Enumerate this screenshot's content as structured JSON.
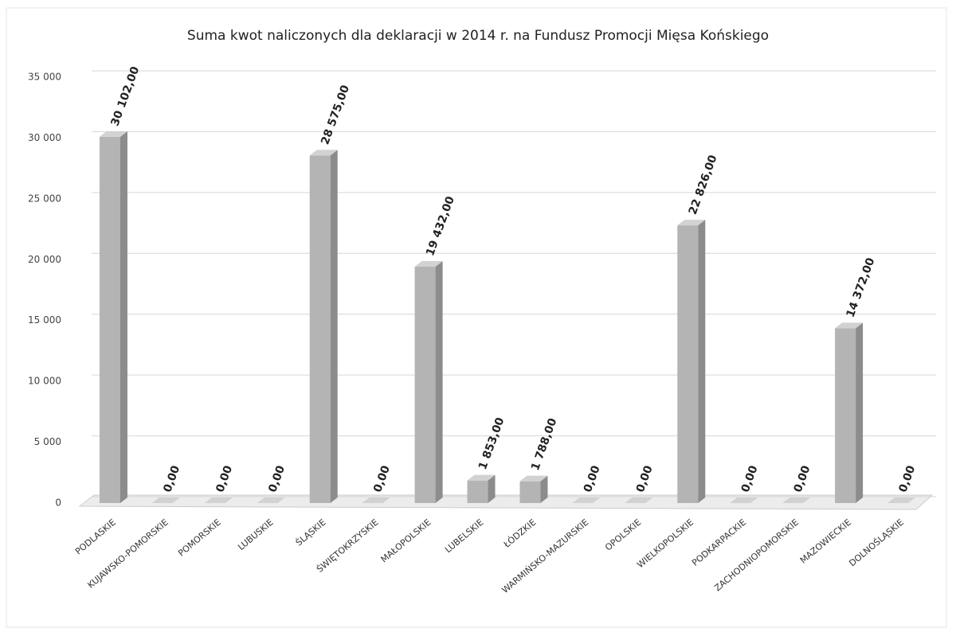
{
  "chart_data": {
    "type": "bar",
    "title": "Suma kwot naliczonych dla deklaracji w 2014 r. na Fundusz Promocji Mięsa Końskiego",
    "categories": [
      "PODLASKIE",
      "KUJAWSKO-POMORSKIE",
      "POMORSKIE",
      "LUBUSKIE",
      "ŚLĄSKIE",
      "ŚWIĘTOKRZYSKIE",
      "MAŁOPOLSKIE",
      "LUBELSKIE",
      "ŁÓDZKIE",
      "WARMIŃSKO-MAZURSKIE",
      "OPOLSKIE",
      "WIELKOPOLSKIE",
      "PODKARPACKIE",
      "ZACHODNIOPOMORSKIE",
      "MAZOWIECKIE",
      "DOLNOŚLĄSKIE"
    ],
    "values": [
      30102,
      0,
      0,
      0,
      28575,
      0,
      19432,
      1853,
      1788,
      0,
      0,
      22826,
      0,
      0,
      14372,
      0
    ],
    "value_labels": [
      "30 102,00",
      "0,00",
      "0,00",
      "0,00",
      "28 575,00",
      "0,00",
      "19 432,00",
      "1 853,00",
      "1 788,00",
      "0,00",
      "0,00",
      "22 826,00",
      "0,00",
      "0,00",
      "14 372,00",
      "0,00"
    ],
    "color": "#b4b4b4",
    "ylim": [
      0,
      35000
    ],
    "yticks": [
      0,
      {
        "value": 5000,
        "label": "5 000"
      },
      {
        "value": 10000,
        "label": "10 000"
      },
      {
        "value": 15000,
        "label": "15 000"
      },
      {
        "value": 20000,
        "label": "20 000"
      },
      {
        "value": 25000,
        "label": "25 000"
      },
      {
        "value": 30000,
        "label": "30 000"
      },
      {
        "value": 35000,
        "label": "35 000"
      }
    ],
    "grid": true
  }
}
